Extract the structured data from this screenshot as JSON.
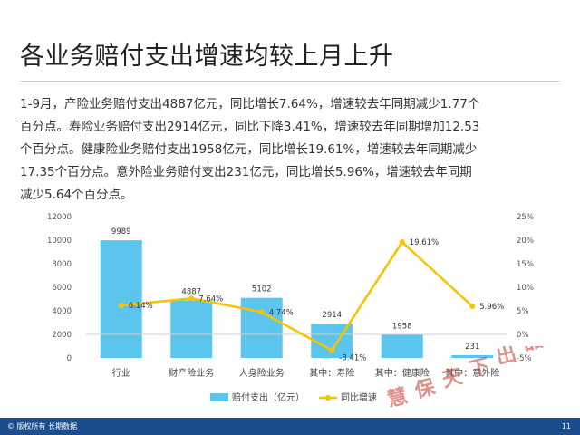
{
  "header": {
    "title": "各业务赔付支出增速均较上月上升"
  },
  "summary": {
    "lines": [
      "1-9月，产险业务赔付支出4887亿元，同比增长7.64%，增速较去年同期减少1.77个",
      "百分点。寿险业务赔付支出2914亿元，同比下降3.41%，增速较去年同期增加12.53",
      "个百分点。健康险业务赔付支出1958亿元，同比增长19.61%，增速较去年同期减少",
      "17.35个百分点。意外险业务赔付支出231亿元，同比增长5.96%，增速较去年同期",
      "减少5.64个百分点。"
    ]
  },
  "chart_data": {
    "type": "bar",
    "categories": [
      "行业",
      "财产险业务",
      "人身险业务",
      "其中：寿险",
      "其中：健康险",
      "其中：意外险"
    ],
    "series": [
      {
        "name": "赔付支出（亿元）",
        "type": "bar",
        "axis": "left",
        "color": "#5bc5ee",
        "values": [
          9989,
          4887,
          5102,
          2914,
          1958,
          231
        ],
        "labels": [
          "9989",
          "4887",
          "5102",
          "2914",
          "1958",
          "231"
        ]
      },
      {
        "name": "同比增速",
        "type": "line",
        "axis": "right",
        "color": "#f6c400",
        "values": [
          6.14,
          7.64,
          4.74,
          -3.41,
          19.61,
          5.96
        ],
        "labels": [
          "6.14%",
          "7.64%",
          "4.74%",
          "-3.41%",
          "19.61%",
          "5.96%"
        ]
      }
    ],
    "y_left": {
      "min": 0,
      "max": 12000,
      "ticks": [
        "0",
        "2000",
        "4000",
        "6000",
        "8000",
        "10000",
        "12000"
      ]
    },
    "y_right": {
      "min": -5,
      "max": 25,
      "ticks": [
        "-5%",
        "0%",
        "5%",
        "10%",
        "15%",
        "20%",
        "25%"
      ]
    },
    "legend_position": "bottom",
    "grid": false
  },
  "footer": {
    "copyright": "© 版权所有 长期数据",
    "page_number": "11"
  },
  "watermark": {
    "text": "慧保天下出品",
    "color": "#c0392b"
  }
}
